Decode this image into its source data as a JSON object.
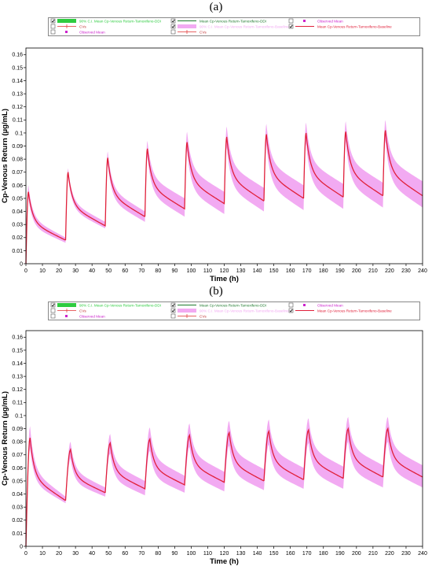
{
  "panels": [
    {
      "label": "(a)",
      "legend": {
        "items": [
          {
            "label": "90% C.I. Mean Cp-Venous Return-Tamoxifeno-DDI",
            "checked": true,
            "swatch": "fill",
            "color": "#2ecc40"
          },
          {
            "label": "Mean Cp-Venous Return-Tamoxifeno-DDI",
            "checked": true,
            "swatch": "line",
            "color": "#1e7a2e"
          },
          {
            "label": "Observed Mean",
            "checked": false,
            "swatch": "square",
            "color": "#cc22cc"
          },
          {
            "label": "CVs",
            "checked": false,
            "swatch": "errbar",
            "color": "#e03030"
          },
          {
            "label": "90% C.I. Mean Cp-Venous Return-Tamoxifeno-Baseline",
            "checked": true,
            "swatch": "fill",
            "color": "#f2aaf2"
          },
          {
            "label": "Mean Cp-Venous Return-Tamoxifeno-Baseline",
            "checked": true,
            "swatch": "line",
            "color": "#e0203a"
          },
          {
            "label": "Observed Mean",
            "checked": false,
            "swatch": "square",
            "color": "#cc22cc"
          },
          {
            "label": "CVs",
            "checked": false,
            "swatch": "errbar",
            "color": "#e03030"
          }
        ]
      }
    },
    {
      "label": "(b)",
      "legend": {
        "items": [
          {
            "label": "90% C.I. Mean Cp-Venous Return-Tamoxifeno-DDI",
            "checked": true,
            "swatch": "fill",
            "color": "#2ecc40"
          },
          {
            "label": "Mean Cp-Venous Return-Tamoxifeno-DDI",
            "checked": true,
            "swatch": "line",
            "color": "#1e7a2e"
          },
          {
            "label": "Observed Mean",
            "checked": false,
            "swatch": "square",
            "color": "#cc22cc"
          },
          {
            "label": "CVs",
            "checked": false,
            "swatch": "errbar",
            "color": "#e03030"
          },
          {
            "label": "90% C.I. Mean Cp-Venous Return-Tamoxifeno-Baseline",
            "checked": true,
            "swatch": "fill",
            "color": "#f2aaf2"
          },
          {
            "label": "Mean Cp-Venous Return-Tamoxifeno-Baseline",
            "checked": true,
            "swatch": "line",
            "color": "#e0203a"
          },
          {
            "label": "Observed Mean",
            "checked": false,
            "swatch": "square",
            "color": "#cc22cc"
          },
          {
            "label": "CVs",
            "checked": false,
            "swatch": "errbar",
            "color": "#e03030"
          }
        ]
      }
    }
  ],
  "chart_data": [
    {
      "type": "line",
      "panel": "(a)",
      "xlabel": "Time (h)",
      "ylabel": "Cp-Venous Return (µg/mL)",
      "xlim": [
        0,
        240
      ],
      "ylim": [
        0,
        0.165
      ],
      "xticks": [
        0,
        10,
        20,
        30,
        40,
        50,
        60,
        70,
        80,
        90,
        100,
        110,
        120,
        130,
        140,
        150,
        160,
        170,
        180,
        190,
        200,
        210,
        220,
        230,
        240
      ],
      "yticks": [
        0,
        0.01,
        0.02,
        0.03,
        0.04,
        0.05,
        0.06,
        0.07,
        0.08,
        0.09,
        0.1,
        0.11,
        0.12,
        0.13,
        0.14,
        0.15,
        0.16
      ],
      "grid": false,
      "dose_interval_h": 24,
      "doses": [
        {
          "t0": 0,
          "peak_t": 1.5,
          "peak": 0.055,
          "trough": 0.018,
          "ci_hi_peak": 0.06,
          "ci_lo_peak": 0.05,
          "ci_hi_trough": 0.02,
          "ci_lo_trough": 0.016
        },
        {
          "t0": 24,
          "peak_t": 25.5,
          "peak": 0.07,
          "trough": 0.029,
          "ci_hi_peak": 0.073,
          "ci_lo_peak": 0.066,
          "ci_hi_trough": 0.032,
          "ci_lo_trough": 0.027
        },
        {
          "t0": 48,
          "peak_t": 49.5,
          "peak": 0.081,
          "trough": 0.036,
          "ci_hi_peak": 0.086,
          "ci_lo_peak": 0.076,
          "ci_hi_trough": 0.04,
          "ci_lo_trough": 0.032
        },
        {
          "t0": 72,
          "peak_t": 73.5,
          "peak": 0.088,
          "trough": 0.042,
          "ci_hi_peak": 0.094,
          "ci_lo_peak": 0.082,
          "ci_hi_trough": 0.05,
          "ci_lo_trough": 0.036
        },
        {
          "t0": 96,
          "peak_t": 97.5,
          "peak": 0.093,
          "trough": 0.046,
          "ci_hi_peak": 0.101,
          "ci_lo_peak": 0.086,
          "ci_hi_trough": 0.055,
          "ci_lo_trough": 0.038
        },
        {
          "t0": 120,
          "peak_t": 121.5,
          "peak": 0.097,
          "trough": 0.048,
          "ci_hi_peak": 0.105,
          "ci_lo_peak": 0.089,
          "ci_hi_trough": 0.058,
          "ci_lo_trough": 0.04
        },
        {
          "t0": 144,
          "peak_t": 145.5,
          "peak": 0.099,
          "trough": 0.05,
          "ci_hi_peak": 0.107,
          "ci_lo_peak": 0.091,
          "ci_hi_trough": 0.06,
          "ci_lo_trough": 0.041
        },
        {
          "t0": 168,
          "peak_t": 169.5,
          "peak": 0.1,
          "trough": 0.051,
          "ci_hi_peak": 0.108,
          "ci_lo_peak": 0.092,
          "ci_hi_trough": 0.061,
          "ci_lo_trough": 0.042
        },
        {
          "t0": 192,
          "peak_t": 193.5,
          "peak": 0.101,
          "trough": 0.052,
          "ci_hi_peak": 0.109,
          "ci_lo_peak": 0.093,
          "ci_hi_trough": 0.062,
          "ci_lo_trough": 0.043
        },
        {
          "t0": 216,
          "peak_t": 217.5,
          "peak": 0.102,
          "trough": 0.052,
          "ci_hi_peak": 0.11,
          "ci_lo_peak": 0.094,
          "ci_hi_trough": 0.063,
          "ci_lo_trough": 0.043
        }
      ],
      "series": [
        {
          "name": "Mean Cp-Venous Return-Tamoxifeno-Baseline",
          "color": "#e0203a"
        },
        {
          "name": "90% C.I. Mean Cp-Venous Return-Tamoxifeno-Baseline",
          "color": "#f2aaf2"
        }
      ]
    },
    {
      "type": "line",
      "panel": "(b)",
      "xlabel": "Time (h)",
      "ylabel": "Cp-Venous Return (µg/mL)",
      "xlim": [
        0,
        240
      ],
      "ylim": [
        0,
        0.165
      ],
      "xticks": [
        0,
        10,
        20,
        30,
        40,
        50,
        60,
        70,
        80,
        90,
        100,
        110,
        120,
        130,
        140,
        150,
        160,
        170,
        180,
        190,
        200,
        210,
        220,
        230,
        240
      ],
      "yticks": [
        0,
        0.01,
        0.02,
        0.03,
        0.04,
        0.05,
        0.06,
        0.07,
        0.08,
        0.09,
        0.1,
        0.11,
        0.12,
        0.13,
        0.14,
        0.15,
        0.16
      ],
      "grid": false,
      "dose_interval_h": 24,
      "doses": [
        {
          "t0": 0,
          "peak_t": 2.5,
          "peak": 0.083,
          "trough": 0.035,
          "ci_hi_peak": 0.092,
          "ci_lo_peak": 0.075,
          "ci_hi_trough": 0.038,
          "ci_lo_trough": 0.033
        },
        {
          "t0": 24,
          "peak_t": 27,
          "peak": 0.074,
          "trough": 0.041,
          "ci_hi_peak": 0.08,
          "ci_lo_peak": 0.067,
          "ci_hi_trough": 0.045,
          "ci_lo_trough": 0.038
        },
        {
          "t0": 48,
          "peak_t": 51,
          "peak": 0.079,
          "trough": 0.044,
          "ci_hi_peak": 0.086,
          "ci_lo_peak": 0.071,
          "ci_hi_trough": 0.05,
          "ci_lo_trough": 0.039
        },
        {
          "t0": 72,
          "peak_t": 75,
          "peak": 0.082,
          "trough": 0.047,
          "ci_hi_peak": 0.091,
          "ci_lo_peak": 0.073,
          "ci_hi_trough": 0.054,
          "ci_lo_trough": 0.041
        },
        {
          "t0": 96,
          "peak_t": 99,
          "peak": 0.085,
          "trough": 0.049,
          "ci_hi_peak": 0.094,
          "ci_lo_peak": 0.076,
          "ci_hi_trough": 0.057,
          "ci_lo_trough": 0.042
        },
        {
          "t0": 120,
          "peak_t": 123,
          "peak": 0.087,
          "trough": 0.05,
          "ci_hi_peak": 0.096,
          "ci_lo_peak": 0.077,
          "ci_hi_trough": 0.059,
          "ci_lo_trough": 0.043
        },
        {
          "t0": 144,
          "peak_t": 147,
          "peak": 0.088,
          "trough": 0.051,
          "ci_hi_peak": 0.097,
          "ci_lo_peak": 0.078,
          "ci_hi_trough": 0.06,
          "ci_lo_trough": 0.044
        },
        {
          "t0": 168,
          "peak_t": 171,
          "peak": 0.089,
          "trough": 0.052,
          "ci_hi_peak": 0.098,
          "ci_lo_peak": 0.079,
          "ci_hi_trough": 0.061,
          "ci_lo_trough": 0.044
        },
        {
          "t0": 192,
          "peak_t": 195,
          "peak": 0.09,
          "trough": 0.053,
          "ci_hi_peak": 0.099,
          "ci_lo_peak": 0.08,
          "ci_hi_trough": 0.062,
          "ci_lo_trough": 0.045
        },
        {
          "t0": 216,
          "peak_t": 219,
          "peak": 0.09,
          "trough": 0.053,
          "ci_hi_peak": 0.099,
          "ci_lo_peak": 0.08,
          "ci_hi_trough": 0.062,
          "ci_lo_trough": 0.045
        }
      ],
      "series": [
        {
          "name": "Mean Cp-Venous Return-Tamoxifeno-Baseline",
          "color": "#e0203a"
        },
        {
          "name": "90% C.I. Mean Cp-Venous Return-Tamoxifeno-Baseline",
          "color": "#f2aaf2"
        }
      ]
    }
  ]
}
